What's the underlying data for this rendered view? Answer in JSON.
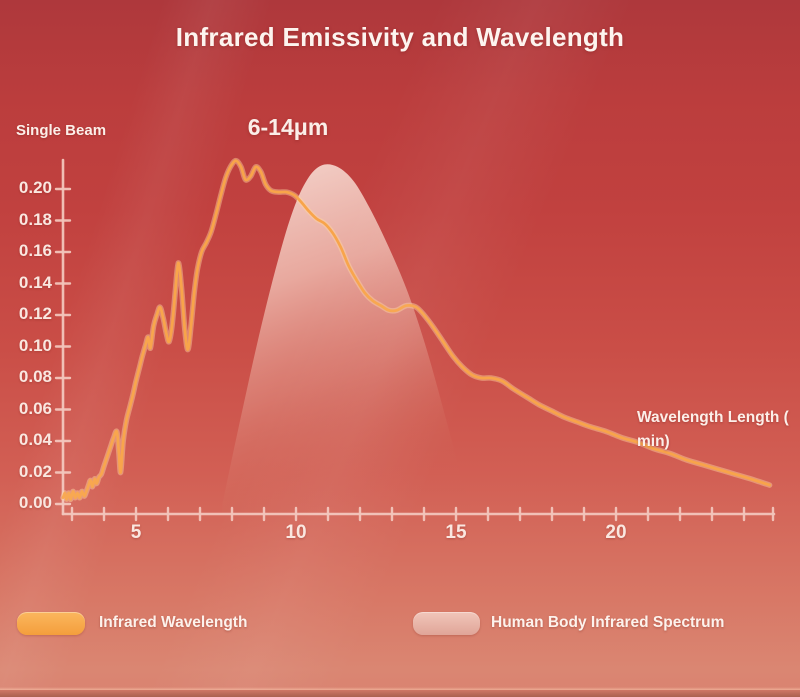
{
  "title": "Infrared Emissivity and Wavelength",
  "annotation": "6-14μm",
  "y_axis": {
    "label": "Single Beam"
  },
  "x_axis": {
    "label_line1": "Wavelength Length (",
    "label_line2": "min)"
  },
  "legend": [
    {
      "label": "Infrared Wavelength",
      "color": "#f7a544"
    },
    {
      "label": "Human Body Infrared Spectrum",
      "color": "#e9b7ab"
    }
  ],
  "colors": {
    "background_top": "#ae383c",
    "background_bottom": "#d98270",
    "axis": "#f3c5bb",
    "text": "#fae7e0",
    "curve_orange": "#f8a44a",
    "spectrum_pink": "#eebfb3"
  },
  "chart_data": {
    "type": "line",
    "title": "Infrared Emissivity and Wavelength",
    "xlabel": "Wavelength Length (min)",
    "ylabel": "Single Beam",
    "xlim": [
      2.7,
      24.9
    ],
    "ylim": [
      0,
      0.22
    ],
    "x_major_ticks": [
      5,
      10,
      15,
      20
    ],
    "x_minor_tick_start": 3,
    "x_minor_tick_end": 24,
    "y_ticks": [
      0,
      0.02,
      0.04,
      0.06,
      0.08,
      0.1,
      0.12,
      0.14,
      0.16,
      0.18,
      0.2
    ],
    "grid": false,
    "legend_position": "bottom",
    "annotation": {
      "text": "6-14μm",
      "x": 9.7,
      "y": 0.245
    },
    "series": [
      {
        "name": "Infrared Wavelength",
        "type": "line",
        "color": "#f8a44a",
        "points": [
          [
            2.72,
            0.004
          ],
          [
            2.78,
            0.007
          ],
          [
            2.83,
            0.003
          ],
          [
            2.9,
            0.007
          ],
          [
            2.96,
            0.003
          ],
          [
            3.03,
            0.008
          ],
          [
            3.1,
            0.004
          ],
          [
            3.17,
            0.007
          ],
          [
            3.24,
            0.004
          ],
          [
            3.31,
            0.008
          ],
          [
            3.38,
            0.005
          ],
          [
            3.45,
            0.008
          ],
          [
            3.52,
            0.012
          ],
          [
            3.58,
            0.015
          ],
          [
            3.64,
            0.011
          ],
          [
            3.71,
            0.016
          ],
          [
            3.77,
            0.013
          ],
          [
            3.84,
            0.017
          ],
          [
            3.92,
            0.019
          ],
          [
            4.0,
            0.024
          ],
          [
            4.1,
            0.03
          ],
          [
            4.2,
            0.036
          ],
          [
            4.3,
            0.042
          ],
          [
            4.4,
            0.046
          ],
          [
            4.46,
            0.034
          ],
          [
            4.52,
            0.02
          ],
          [
            4.6,
            0.04
          ],
          [
            4.7,
            0.053
          ],
          [
            4.8,
            0.061
          ],
          [
            4.9,
            0.069
          ],
          [
            5.0,
            0.078
          ],
          [
            5.1,
            0.086
          ],
          [
            5.2,
            0.094
          ],
          [
            5.3,
            0.101
          ],
          [
            5.38,
            0.106
          ],
          [
            5.45,
            0.099
          ],
          [
            5.55,
            0.113
          ],
          [
            5.65,
            0.12
          ],
          [
            5.75,
            0.125
          ],
          [
            5.85,
            0.118
          ],
          [
            5.95,
            0.108
          ],
          [
            6.03,
            0.103
          ],
          [
            6.12,
            0.112
          ],
          [
            6.22,
            0.133
          ],
          [
            6.32,
            0.153
          ],
          [
            6.42,
            0.138
          ],
          [
            6.52,
            0.112
          ],
          [
            6.62,
            0.098
          ],
          [
            6.72,
            0.113
          ],
          [
            6.82,
            0.134
          ],
          [
            6.92,
            0.149
          ],
          [
            7.05,
            0.16
          ],
          [
            7.2,
            0.166
          ],
          [
            7.35,
            0.173
          ],
          [
            7.5,
            0.184
          ],
          [
            7.65,
            0.196
          ],
          [
            7.8,
            0.207
          ],
          [
            7.95,
            0.214
          ],
          [
            8.12,
            0.218
          ],
          [
            8.28,
            0.214
          ],
          [
            8.42,
            0.206
          ],
          [
            8.58,
            0.208
          ],
          [
            8.74,
            0.214
          ],
          [
            8.9,
            0.211
          ],
          [
            9.05,
            0.203
          ],
          [
            9.22,
            0.199
          ],
          [
            9.45,
            0.198
          ],
          [
            9.7,
            0.198
          ],
          [
            9.95,
            0.196
          ],
          [
            10.15,
            0.192
          ],
          [
            10.4,
            0.186
          ],
          [
            10.65,
            0.181
          ],
          [
            10.9,
            0.178
          ],
          [
            11.15,
            0.172
          ],
          [
            11.4,
            0.163
          ],
          [
            11.65,
            0.151
          ],
          [
            11.9,
            0.142
          ],
          [
            12.15,
            0.134
          ],
          [
            12.4,
            0.129
          ],
          [
            12.65,
            0.126
          ],
          [
            12.9,
            0.123
          ],
          [
            13.15,
            0.123
          ],
          [
            13.45,
            0.126
          ],
          [
            13.75,
            0.125
          ],
          [
            14.0,
            0.12
          ],
          [
            14.3,
            0.112
          ],
          [
            14.6,
            0.103
          ],
          [
            14.9,
            0.094
          ],
          [
            15.2,
            0.087
          ],
          [
            15.5,
            0.082
          ],
          [
            15.8,
            0.08
          ],
          [
            16.1,
            0.08
          ],
          [
            16.45,
            0.078
          ],
          [
            16.8,
            0.073
          ],
          [
            17.2,
            0.068
          ],
          [
            17.6,
            0.063
          ],
          [
            18.0,
            0.059
          ],
          [
            18.4,
            0.055
          ],
          [
            18.8,
            0.052
          ],
          [
            19.2,
            0.049
          ],
          [
            19.7,
            0.046
          ],
          [
            20.2,
            0.042
          ],
          [
            20.7,
            0.039
          ],
          [
            21.2,
            0.035
          ],
          [
            21.7,
            0.032
          ],
          [
            22.2,
            0.028
          ],
          [
            22.7,
            0.025
          ],
          [
            23.2,
            0.022
          ],
          [
            23.7,
            0.019
          ],
          [
            24.2,
            0.016
          ],
          [
            24.5,
            0.014
          ],
          [
            24.8,
            0.012
          ]
        ]
      },
      {
        "name": "Human Body Infrared Spectrum",
        "type": "area",
        "color": "#eebfb3",
        "points": [
          [
            7.7,
            0.0
          ],
          [
            8.2,
            0.048
          ],
          [
            8.8,
            0.103
          ],
          [
            9.4,
            0.152
          ],
          [
            9.9,
            0.186
          ],
          [
            10.35,
            0.206
          ],
          [
            10.8,
            0.215
          ],
          [
            11.3,
            0.214
          ],
          [
            11.8,
            0.205
          ],
          [
            12.3,
            0.188
          ],
          [
            12.9,
            0.163
          ],
          [
            13.5,
            0.134
          ],
          [
            14.1,
            0.097
          ],
          [
            14.7,
            0.053
          ],
          [
            15.2,
            0.015
          ],
          [
            15.45,
            0.0
          ]
        ]
      }
    ]
  }
}
